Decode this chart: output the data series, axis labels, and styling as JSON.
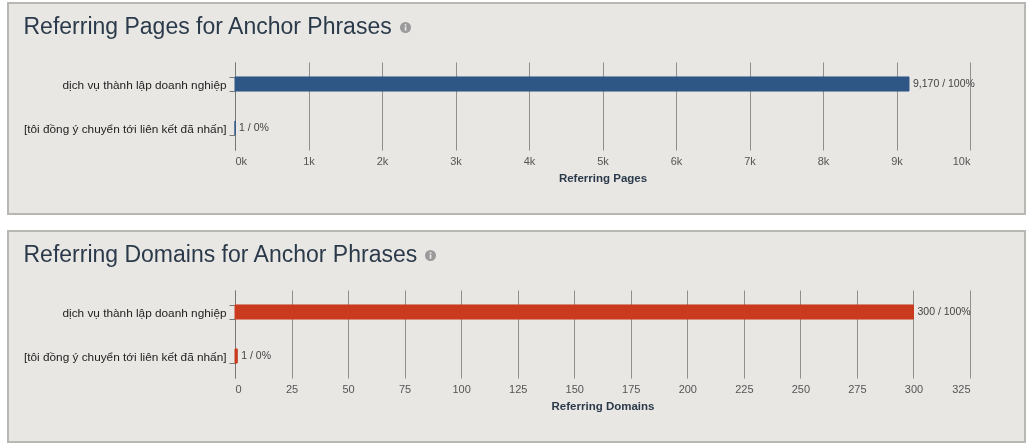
{
  "chart_data": [
    {
      "type": "bar",
      "orientation": "horizontal",
      "title": "Referring Pages for Anchor Phrases",
      "xlabel": "Referring Pages",
      "categories": [
        "dịch vụ thành lập doanh nghiệp",
        "[tôi đồng ý chuyển tới liên kết đã nhấn]"
      ],
      "values": [
        9170,
        1
      ],
      "value_labels": [
        "9,170 / 100%",
        "1 / 0%"
      ],
      "color": "#2f5786",
      "xlim": [
        0,
        10000
      ],
      "xticks": [
        {
          "value": 0,
          "label": "0k"
        },
        {
          "value": 1000,
          "label": "1k"
        },
        {
          "value": 2000,
          "label": "2k"
        },
        {
          "value": 3000,
          "label": "3k"
        },
        {
          "value": 4000,
          "label": "4k"
        },
        {
          "value": 5000,
          "label": "5k"
        },
        {
          "value": 6000,
          "label": "6k"
        },
        {
          "value": 7000,
          "label": "7k"
        },
        {
          "value": 8000,
          "label": "8k"
        },
        {
          "value": 9000,
          "label": "9k"
        },
        {
          "value": 10000,
          "label": "10k"
        }
      ],
      "grid": "x"
    },
    {
      "type": "bar",
      "orientation": "horizontal",
      "title": "Referring Domains for Anchor Phrases",
      "xlabel": "Referring Domains",
      "categories": [
        "dịch vụ thành lập doanh nghiệp",
        "[tôi đồng ý chuyển tới liên kết đã nhấn]"
      ],
      "values": [
        300,
        1
      ],
      "value_labels": [
        "300 / 100%",
        "1 / 0%"
      ],
      "color": "#c93a1f",
      "xlim": [
        0,
        325
      ],
      "xticks": [
        0,
        25,
        50,
        75,
        100,
        125,
        150,
        175,
        200,
        225,
        250,
        275,
        300,
        325
      ],
      "grid": "x"
    }
  ]
}
